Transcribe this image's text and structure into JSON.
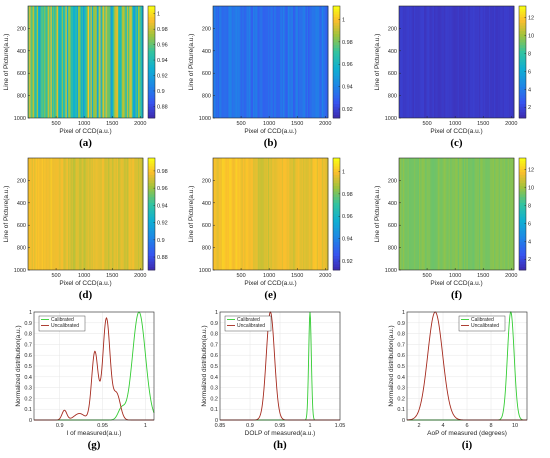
{
  "chart_data": [
    {
      "type": "heatmap",
      "label": "(a)",
      "xlabel": "Pixel of CCD(a.u.)",
      "ylabel": "Line of Picture(a.u.)",
      "xticks": [
        "500",
        "1000",
        "1500",
        "2000"
      ],
      "yticks": [
        "200",
        "400",
        "600",
        "800",
        "1000"
      ],
      "xlim": [
        0,
        2048
      ],
      "ylim": [
        0,
        1000
      ],
      "colorbar": {
        "ticks": [
          "0.88",
          "0.9",
          "0.92",
          "0.94",
          "0.96",
          "0.98",
          "1"
        ],
        "range": [
          0.865,
          1.01
        ]
      },
      "pattern": "striped",
      "value_mean": 0.955,
      "value_amplitude": 0.035
    },
    {
      "type": "heatmap",
      "label": "(b)",
      "xlabel": "Pixel of CCD(a.u.)",
      "ylabel": "Line of Picture(a.u.)",
      "xticks": [
        "500",
        "1000",
        "1500",
        "2000"
      ],
      "yticks": [
        "200",
        "400",
        "600",
        "800",
        "1000"
      ],
      "xlim": [
        0,
        2048
      ],
      "ylim": [
        0,
        1000
      ],
      "colorbar": {
        "ticks": [
          "0.92",
          "0.94",
          "0.96",
          "0.98",
          "1"
        ],
        "range": [
          0.912,
          1.012
        ]
      },
      "pattern": "flat",
      "value_mean": 0.935,
      "value_amplitude": 0.006
    },
    {
      "type": "heatmap",
      "label": "(c)",
      "xlabel": "Pixel of CCD(a.u.)",
      "ylabel": "Line of Picture(a.u.)",
      "xticks": [
        "500",
        "1000",
        "1500",
        "2000"
      ],
      "yticks": [
        "200",
        "400",
        "600",
        "800",
        "1000"
      ],
      "xlim": [
        0,
        2048
      ],
      "ylim": [
        0,
        1000
      ],
      "colorbar": {
        "ticks": [
          "2",
          "4",
          "6",
          "8",
          "10",
          "12"
        ],
        "range": [
          0.8,
          13.3
        ]
      },
      "pattern": "flat",
      "value_mean": 1.6,
      "value_amplitude": 0.2
    },
    {
      "type": "heatmap",
      "label": "(d)",
      "xlabel": "Pixel of CCD(a.u.)",
      "ylabel": "Line of Picture(a.u.)",
      "xticks": [
        "500",
        "1000",
        "1500",
        "2000"
      ],
      "yticks": [
        "200",
        "400",
        "600",
        "800",
        "1000"
      ],
      "xlim": [
        0,
        2048
      ],
      "ylim": [
        0,
        1000
      ],
      "colorbar": {
        "ticks": [
          "0.88",
          "0.9",
          "0.92",
          "0.94",
          "0.96",
          "0.98"
        ],
        "range": [
          0.865,
          0.995
        ]
      },
      "pattern": "smooth",
      "value_mean": 0.975,
      "value_amplitude": 0.008
    },
    {
      "type": "heatmap",
      "label": "(e)",
      "xlabel": "Pixel of CCD(a.u.)",
      "ylabel": "Line of Picture(a.u.)",
      "xticks": [
        "500",
        "1000",
        "1500",
        "2000"
      ],
      "yticks": [
        "200",
        "400",
        "600",
        "800",
        "1000"
      ],
      "xlim": [
        0,
        2048
      ],
      "ylim": [
        0,
        1000
      ],
      "colorbar": {
        "ticks": [
          "0.92",
          "0.94",
          "0.96",
          "0.98",
          "1"
        ],
        "range": [
          0.912,
          1.012
        ]
      },
      "pattern": "smooth",
      "value_mean": 0.998,
      "value_amplitude": 0.006
    },
    {
      "type": "heatmap",
      "label": "(f)",
      "xlabel": "Pixel of CCD(a.u.)",
      "ylabel": "Line of Picture(a.u.)",
      "xticks": [
        "500",
        "1000",
        "1500",
        "2000"
      ],
      "yticks": [
        "200",
        "400",
        "600",
        "800",
        "1000"
      ],
      "xlim": [
        0,
        2048
      ],
      "ylim": [
        0,
        1000
      ],
      "colorbar": {
        "ticks": [
          "2",
          "4",
          "6",
          "8",
          "10",
          "12"
        ],
        "range": [
          0.8,
          13.3
        ]
      },
      "pattern": "flat",
      "value_mean": 9.6,
      "value_amplitude": 0.3
    },
    {
      "type": "line",
      "label": "(g)",
      "xlabel": "I of measured(a.u.)",
      "ylabel": "Normalized distribution(a.u.)",
      "xlim": [
        0.87,
        1.01
      ],
      "ylim": [
        0,
        1
      ],
      "xticks": [
        "0.9",
        "0.95",
        "1"
      ],
      "yticks": [
        "0",
        "0.1",
        "0.2",
        "0.3",
        "0.4",
        "0.5",
        "0.6",
        "0.7",
        "0.8",
        "0.9",
        "1"
      ],
      "legend": "top-left",
      "series": [
        {
          "name": "Calibrated",
          "color": "#33cc33",
          "peaks": [
            {
              "mu": 0.9925,
              "sigma": 0.0075,
              "amp": 1.0
            },
            {
              "mu": 0.972,
              "sigma": 0.004,
              "amp": 0.1
            }
          ]
        },
        {
          "name": "Uncalibrated",
          "color": "#a52a1e",
          "peaks": [
            {
              "mu": 0.9545,
              "sigma": 0.0042,
              "amp": 0.94
            },
            {
              "mu": 0.941,
              "sigma": 0.0037,
              "amp": 0.63
            },
            {
              "mu": 0.9665,
              "sigma": 0.0042,
              "amp": 0.24
            },
            {
              "mu": 0.9055,
              "sigma": 0.0028,
              "amp": 0.09
            },
            {
              "mu": 0.923,
              "sigma": 0.006,
              "amp": 0.06
            }
          ]
        }
      ]
    },
    {
      "type": "line",
      "label": "(h)",
      "xlabel": "DOLP of measured(a.u.)",
      "ylabel": "Normalized distribution(a.u.)",
      "xlim": [
        0.85,
        1.05
      ],
      "ylim": [
        0,
        1
      ],
      "xticks": [
        "0.85",
        "0.9",
        "0.95",
        "1",
        "1.05"
      ],
      "yticks": [
        "0",
        "0.1",
        "0.2",
        "0.3",
        "0.4",
        "0.5",
        "0.6",
        "0.7",
        "0.8",
        "0.9",
        "1"
      ],
      "legend": "top-left",
      "series": [
        {
          "name": "Calibrated",
          "color": "#33cc33",
          "peaks": [
            {
              "mu": 1.0,
              "sigma": 0.0022,
              "amp": 1.0
            }
          ]
        },
        {
          "name": "Uncalibrated",
          "color": "#a52a1e",
          "peaks": [
            {
              "mu": 0.934,
              "sigma": 0.0068,
              "amp": 1.0
            }
          ]
        }
      ]
    },
    {
      "type": "line",
      "label": "(i)",
      "xlabel": "AoP of measured (degrees)",
      "ylabel": "Normalized distribution(a.u.)",
      "xlim": [
        1,
        11
      ],
      "ylim": [
        0,
        1
      ],
      "xticks": [
        "2",
        "4",
        "6",
        "8",
        "10"
      ],
      "yticks": [
        "0",
        "0.1",
        "0.2",
        "0.3",
        "0.4",
        "0.5",
        "0.6",
        "0.7",
        "0.8",
        "0.9",
        "1"
      ],
      "legend": "top-right",
      "series": [
        {
          "name": "Calibrated",
          "color": "#33cc33",
          "peaks": [
            {
              "mu": 9.65,
              "sigma": 0.28,
              "amp": 1.0
            }
          ]
        },
        {
          "name": "Uncalibrated",
          "color": "#a52a1e",
          "peaks": [
            {
              "mu": 3.35,
              "sigma": 0.62,
              "amp": 1.0
            }
          ]
        }
      ]
    }
  ]
}
